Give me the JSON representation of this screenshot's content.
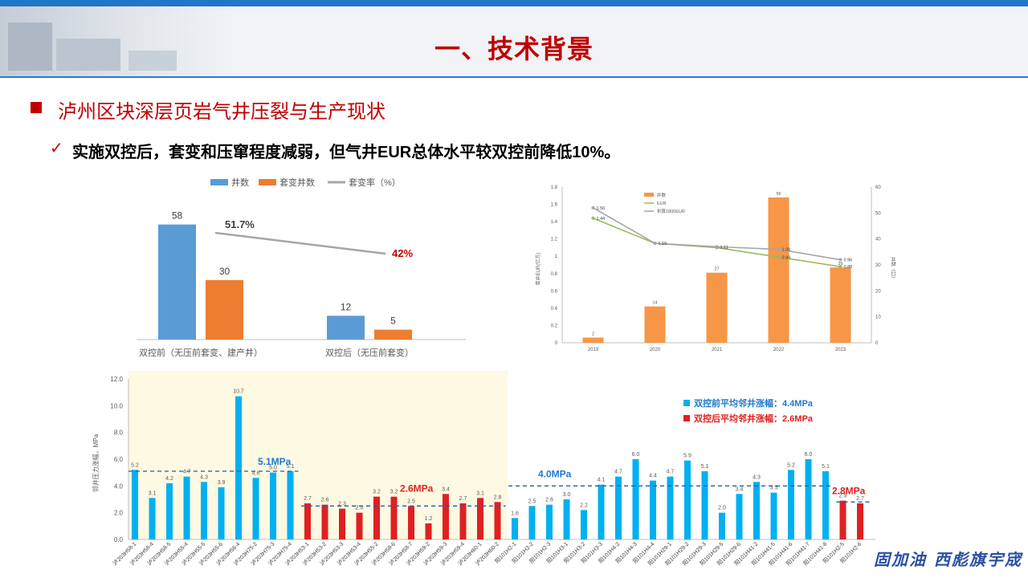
{
  "header": {
    "title": "一、技术背景"
  },
  "section": {
    "title": "泸州区块深层页岩气井压裂与生产现状"
  },
  "subtitle": "实施双控后，套变和压窜程度减弱，但气井EUR总体水平较双控前降低10%。",
  "footer": "固加油 西彪旗宇宬",
  "colors": {
    "accent": "#c00000",
    "blue": "#5b9bd5",
    "orange": "#ed7d31",
    "cyan": "#00b0f0",
    "red": "#e02020"
  },
  "chart_data": [
    {
      "type": "bar",
      "legend": [
        "井数",
        "套变井数",
        "套变率（%）"
      ],
      "categories": [
        "双控前（无压前套变、建产井）",
        "双控后（无压前套变）"
      ],
      "series": [
        {
          "name": "井数",
          "values": [
            58,
            12
          ]
        },
        {
          "name": "套变井数",
          "values": [
            30,
            5
          ]
        },
        {
          "name": "套变率（%）",
          "values": [
            51.7,
            42
          ],
          "labels": [
            "51.7%",
            "42%"
          ]
        }
      ],
      "ylim": [
        0,
        70
      ]
    },
    {
      "type": "bar",
      "legend": [
        "井数",
        "EUR",
        "折算1800EUR"
      ],
      "categories": [
        "2019",
        "2020",
        "2021",
        "2022",
        "2023"
      ],
      "bars": {
        "name": "井数",
        "values": [
          2,
          14,
          27,
          56,
          29
        ]
      },
      "lines": [
        {
          "name": "EUR",
          "values": [
            1.44,
            1.15,
            1.1,
            0.99,
            0.88
          ]
        },
        {
          "name": "折算1800EUR",
          "values": [
            1.56,
            1.15,
            1.11,
            1.08,
            0.96
          ]
        }
      ],
      "line_labels": [
        [
          "1.56",
          "1.44"
        ],
        [
          "1.15"
        ],
        [
          "1.11"
        ],
        [
          "1.08",
          "0.99"
        ],
        [
          "0.96",
          "0.88"
        ]
      ],
      "ylabel_left": "单井EUR(亿方)",
      "ylabel_right": "井数（口）",
      "ylim_left": [
        0,
        1.8
      ],
      "ylim_right": [
        0,
        60
      ],
      "yticks_left": [
        "0",
        "0.2",
        "0.4",
        "0.6",
        "0.8",
        "1",
        "1.2",
        "1.4",
        "1.6",
        "1.8"
      ],
      "yticks_right": [
        "0",
        "10",
        "20",
        "30",
        "40",
        "50",
        "60"
      ]
    },
    {
      "type": "bar",
      "ylabel": "邻井压力涨幅，MPa",
      "ylim": [
        0,
        12
      ],
      "yticks": [
        "0.0",
        "2.0",
        "4.0",
        "6.0",
        "8.0",
        "10.0",
        "12.0"
      ],
      "legend": [
        "双控前平均邻井涨幅：4.4MPa",
        "双控后平均邻井涨幅：2.6MPa"
      ],
      "annotations": [
        "5.1MPa",
        "2.6MPa",
        "4.0MPa",
        "2.8MPa"
      ],
      "categories": [
        "泸203H58-1",
        "泸203H58-4",
        "泸203H58-5",
        "泸203H55-4",
        "泸203H55-5",
        "泸203H55-6",
        "泸203H56-4",
        "泸203H75-2",
        "泸203H75-3",
        "泸203H75-4",
        "泸203H53-1",
        "泸203H53-2",
        "泸203H53-3",
        "泸203H53-4",
        "泸203H55-2",
        "泸203H58-6",
        "泸203H58-7",
        "泸203H59-2",
        "泸203H59-3",
        "泸203H59-4",
        "泸203H60-1",
        "泸203H60-2",
        "阳101H2-1",
        "阳101H2-2",
        "阳101H2-3",
        "阳101H3-1",
        "阳101H3-2",
        "阳101H3-3",
        "阳101H4-2",
        "阳101H4-3",
        "阳101H4-4",
        "阳101H29-1",
        "阳101H29-2",
        "阳101H29-3",
        "阳101H29-5",
        "阳101H29-6",
        "阳101H41-2",
        "阳101H41-5",
        "阳101H41-6",
        "阳101H41-7",
        "阳101H41-8",
        "阳101H2-5",
        "阳101H2-6"
      ],
      "values": [
        5.2,
        3.1,
        4.2,
        4.7,
        4.3,
        3.9,
        10.7,
        4.6,
        5.0,
        5.1,
        2.7,
        2.6,
        2.3,
        2.0,
        3.2,
        3.2,
        2.5,
        1.2,
        3.4,
        2.7,
        3.1,
        2.8,
        1.6,
        2.5,
        2.6,
        3.0,
        2.2,
        4.1,
        4.7,
        6.0,
        4.4,
        4.7,
        5.9,
        5.1,
        2.0,
        3.4,
        4.3,
        3.5,
        5.2,
        6.0,
        5.1,
        2.9,
        2.7
      ],
      "groups": [
        "pre",
        "pre",
        "pre",
        "pre",
        "pre",
        "pre",
        "pre",
        "pre",
        "pre",
        "pre",
        "post",
        "post",
        "post",
        "post",
        "post",
        "post",
        "post",
        "post",
        "post",
        "post",
        "post",
        "post",
        "pre",
        "pre",
        "pre",
        "pre",
        "pre",
        "pre",
        "pre",
        "pre",
        "pre",
        "pre",
        "pre",
        "pre",
        "pre",
        "pre",
        "pre",
        "pre",
        "pre",
        "pre",
        "pre",
        "post",
        "post"
      ]
    }
  ]
}
